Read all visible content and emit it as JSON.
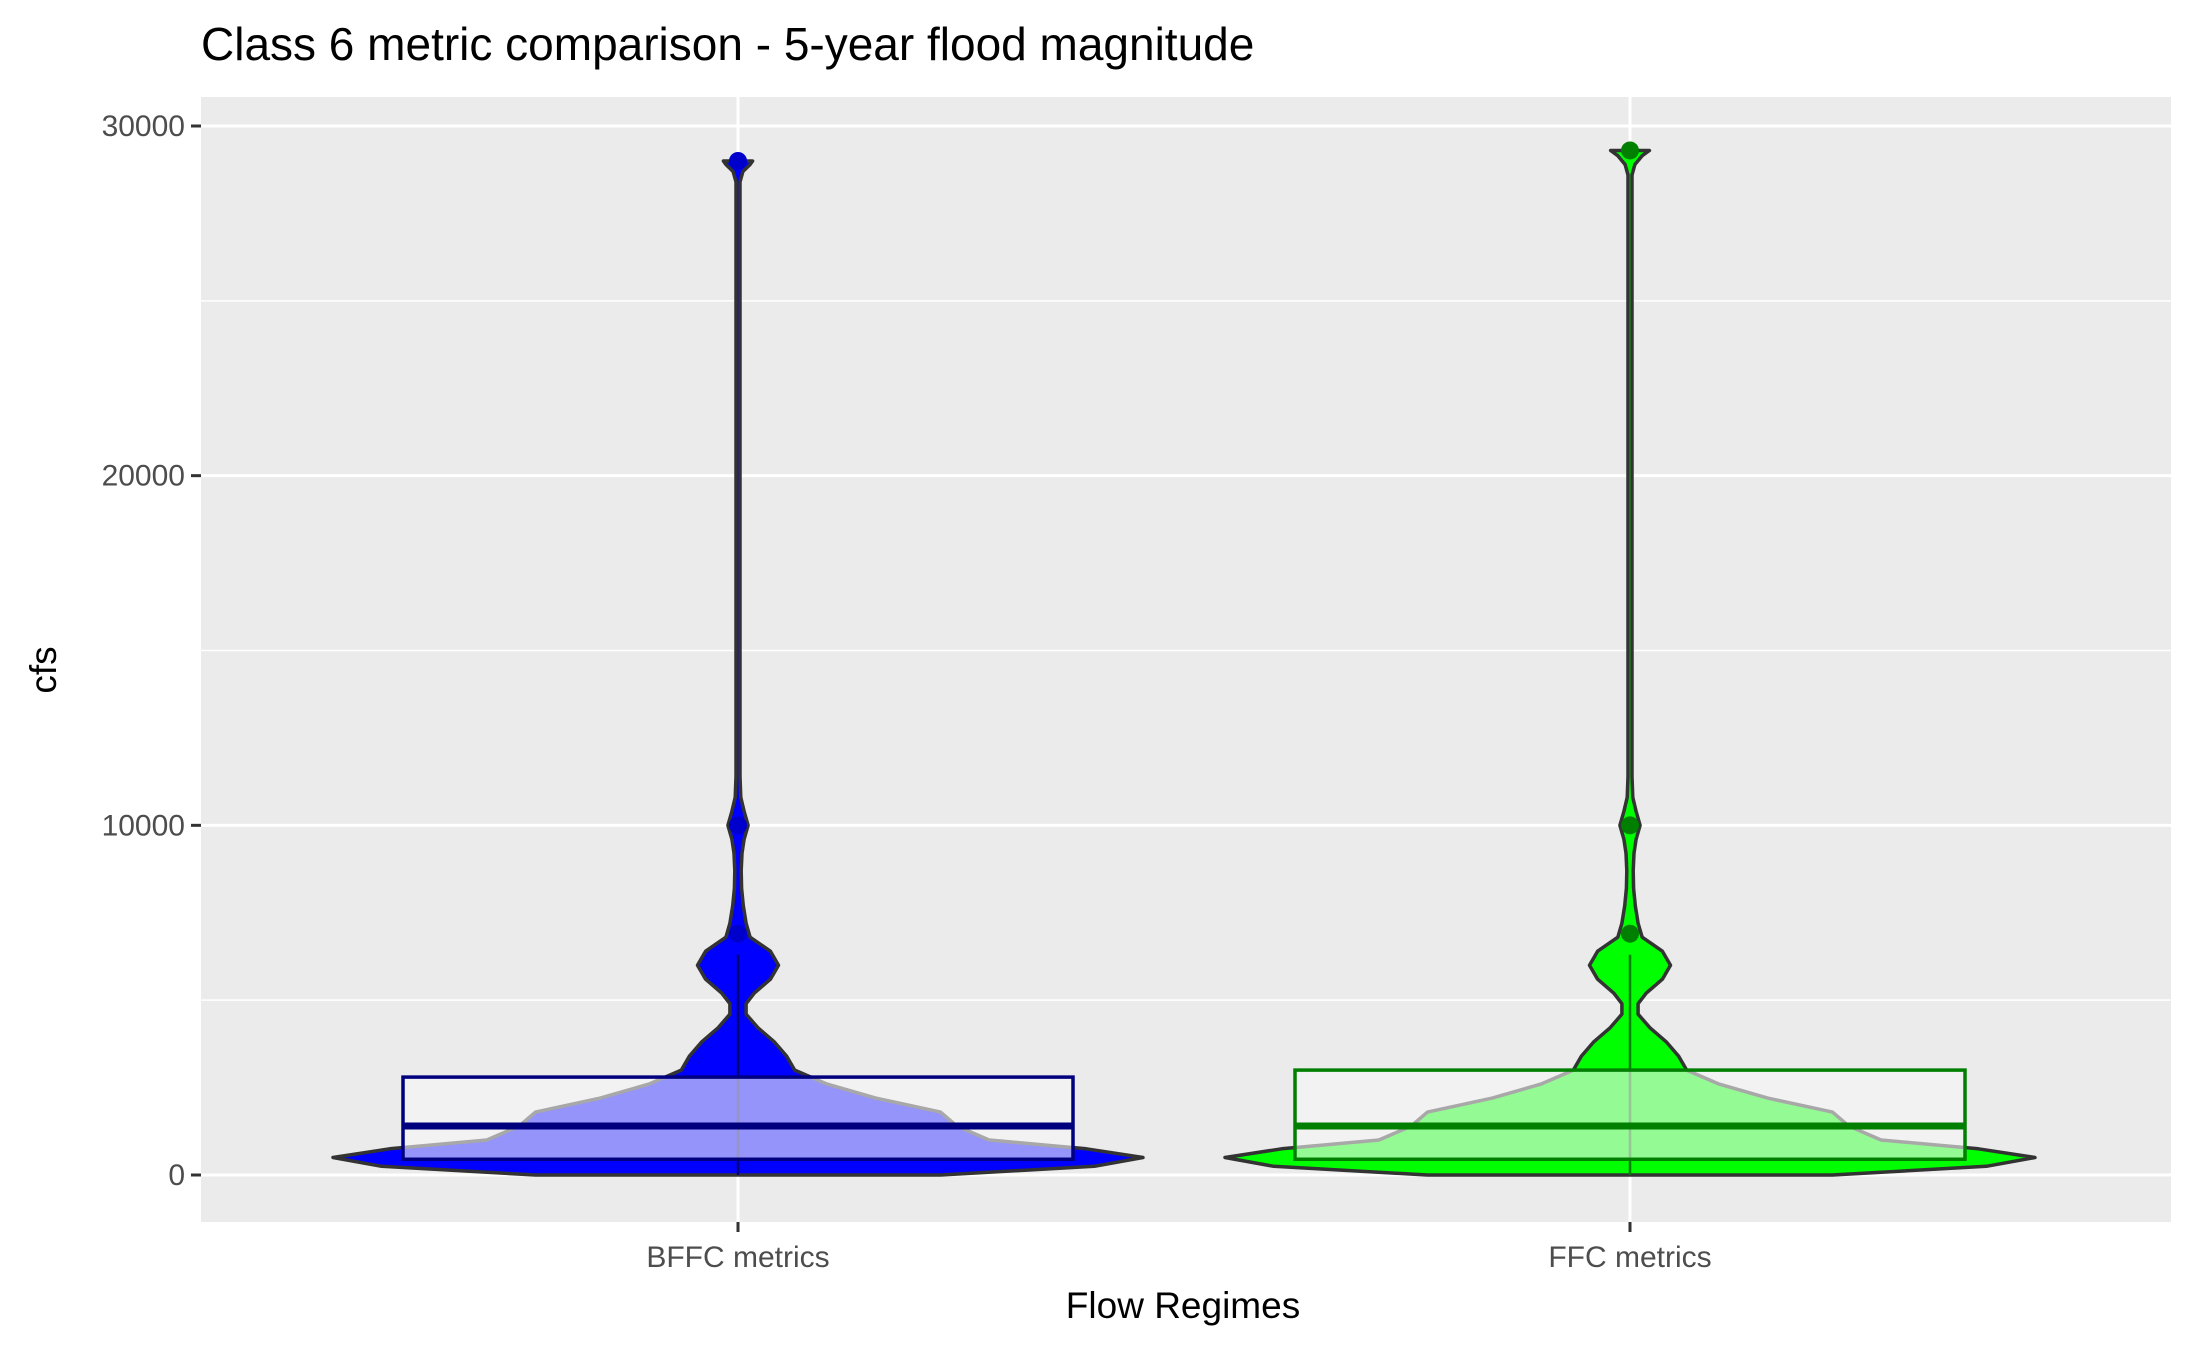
{
  "chart_data": {
    "type": "violin",
    "title": "Class 6 metric comparison - 5-year flood magnitude",
    "xlabel": "Flow Regimes",
    "ylabel": "cfs",
    "ylim": [
      -1300,
      30800
    ],
    "yticks": [
      0,
      10000,
      20000,
      30000
    ],
    "categories": [
      "BFFC metrics",
      "FFC metrics"
    ],
    "grid": true,
    "legend": "none",
    "series": [
      {
        "category": "BFFC metrics",
        "fill_color": "#0000ff",
        "box_fill": "#f7f7f7",
        "box_color": "#00007f",
        "points_color": "#0000cc",
        "box": {
          "q1": 450,
          "median": 1400,
          "q3": 2800,
          "whisker_low": 0,
          "whisker_high": 6300
        },
        "outliers": [
          6900,
          10000,
          29000
        ],
        "density": [
          [
            0,
            0.5
          ],
          [
            250,
            0.88
          ],
          [
            500,
            1.0
          ],
          [
            750,
            0.86
          ],
          [
            1000,
            0.62
          ],
          [
            1400,
            0.54
          ],
          [
            1800,
            0.5
          ],
          [
            2200,
            0.34
          ],
          [
            2600,
            0.22
          ],
          [
            3000,
            0.14
          ],
          [
            3400,
            0.12
          ],
          [
            3800,
            0.09
          ],
          [
            4200,
            0.05
          ],
          [
            4600,
            0.02
          ],
          [
            4900,
            0.02
          ],
          [
            5200,
            0.04
          ],
          [
            5600,
            0.08
          ],
          [
            6000,
            0.1
          ],
          [
            6400,
            0.08
          ],
          [
            6800,
            0.03
          ],
          [
            7200,
            0.02
          ],
          [
            7700,
            0.013
          ],
          [
            8200,
            0.009
          ],
          [
            8700,
            0.008
          ],
          [
            9200,
            0.01
          ],
          [
            9600,
            0.015
          ],
          [
            10000,
            0.025
          ],
          [
            10400,
            0.015
          ],
          [
            10800,
            0.007
          ],
          [
            11400,
            0.005
          ],
          [
            28400,
            0.005
          ],
          [
            28700,
            0.012
          ],
          [
            28900,
            0.03
          ],
          [
            29000,
            0.036
          ]
        ]
      },
      {
        "category": "FFC metrics",
        "fill_color": "#00ff00",
        "box_fill": "#f7f7f7",
        "box_color": "#007f00",
        "points_color": "#007f00",
        "box": {
          "q1": 450,
          "median": 1400,
          "q3": 3000,
          "whisker_low": 0,
          "whisker_high": 6300
        },
        "outliers": [
          6900,
          10000,
          29300
        ],
        "density": [
          [
            0,
            0.5
          ],
          [
            250,
            0.88
          ],
          [
            500,
            1.0
          ],
          [
            750,
            0.86
          ],
          [
            1000,
            0.62
          ],
          [
            1400,
            0.54
          ],
          [
            1800,
            0.5
          ],
          [
            2200,
            0.34
          ],
          [
            2600,
            0.22
          ],
          [
            3000,
            0.14
          ],
          [
            3400,
            0.12
          ],
          [
            3800,
            0.09
          ],
          [
            4200,
            0.05
          ],
          [
            4600,
            0.02
          ],
          [
            4900,
            0.02
          ],
          [
            5200,
            0.04
          ],
          [
            5600,
            0.08
          ],
          [
            6000,
            0.1
          ],
          [
            6400,
            0.08
          ],
          [
            6800,
            0.03
          ],
          [
            7200,
            0.02
          ],
          [
            7700,
            0.013
          ],
          [
            8200,
            0.009
          ],
          [
            8700,
            0.008
          ],
          [
            9200,
            0.01
          ],
          [
            9600,
            0.015
          ],
          [
            10000,
            0.025
          ],
          [
            10400,
            0.015
          ],
          [
            10800,
            0.007
          ],
          [
            11400,
            0.005
          ],
          [
            28600,
            0.005
          ],
          [
            28900,
            0.012
          ],
          [
            29150,
            0.03
          ],
          [
            29300,
            0.048
          ]
        ]
      }
    ]
  }
}
